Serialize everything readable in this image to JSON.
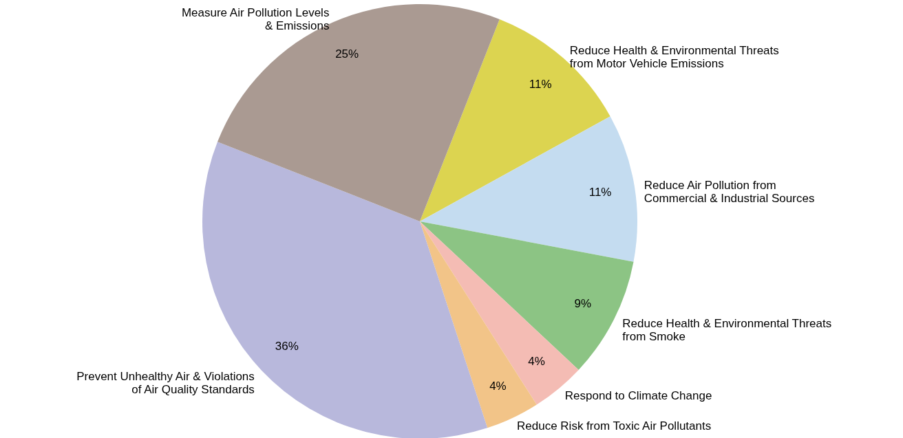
{
  "chart_data": {
    "type": "pie",
    "categories": [
      "Reduce Health & Environmental Threats\nfrom Motor Vehicle Emissions",
      "Reduce Air Pollution from\nCommercial & Industrial Sources",
      "Reduce Health & Environmental Threats\nfrom Smoke",
      "Respond to Climate Change",
      "Reduce Risk from Toxic Air Pollutants",
      "Prevent Unhealthy Air & Violations\nof Air Quality Standards",
      "Measure Air Pollution Levels\n& Emissions"
    ],
    "values": [
      11,
      11,
      9,
      4,
      4,
      36,
      25
    ],
    "value_labels": [
      "11%",
      "11%",
      "9%",
      "4%",
      "4%",
      "36%",
      "25%"
    ],
    "colors": [
      "#dcd450",
      "#c4dcf0",
      "#8cc484",
      "#f4bcb4",
      "#f2c488",
      "#b8b8dc",
      "#aa9a92"
    ]
  }
}
